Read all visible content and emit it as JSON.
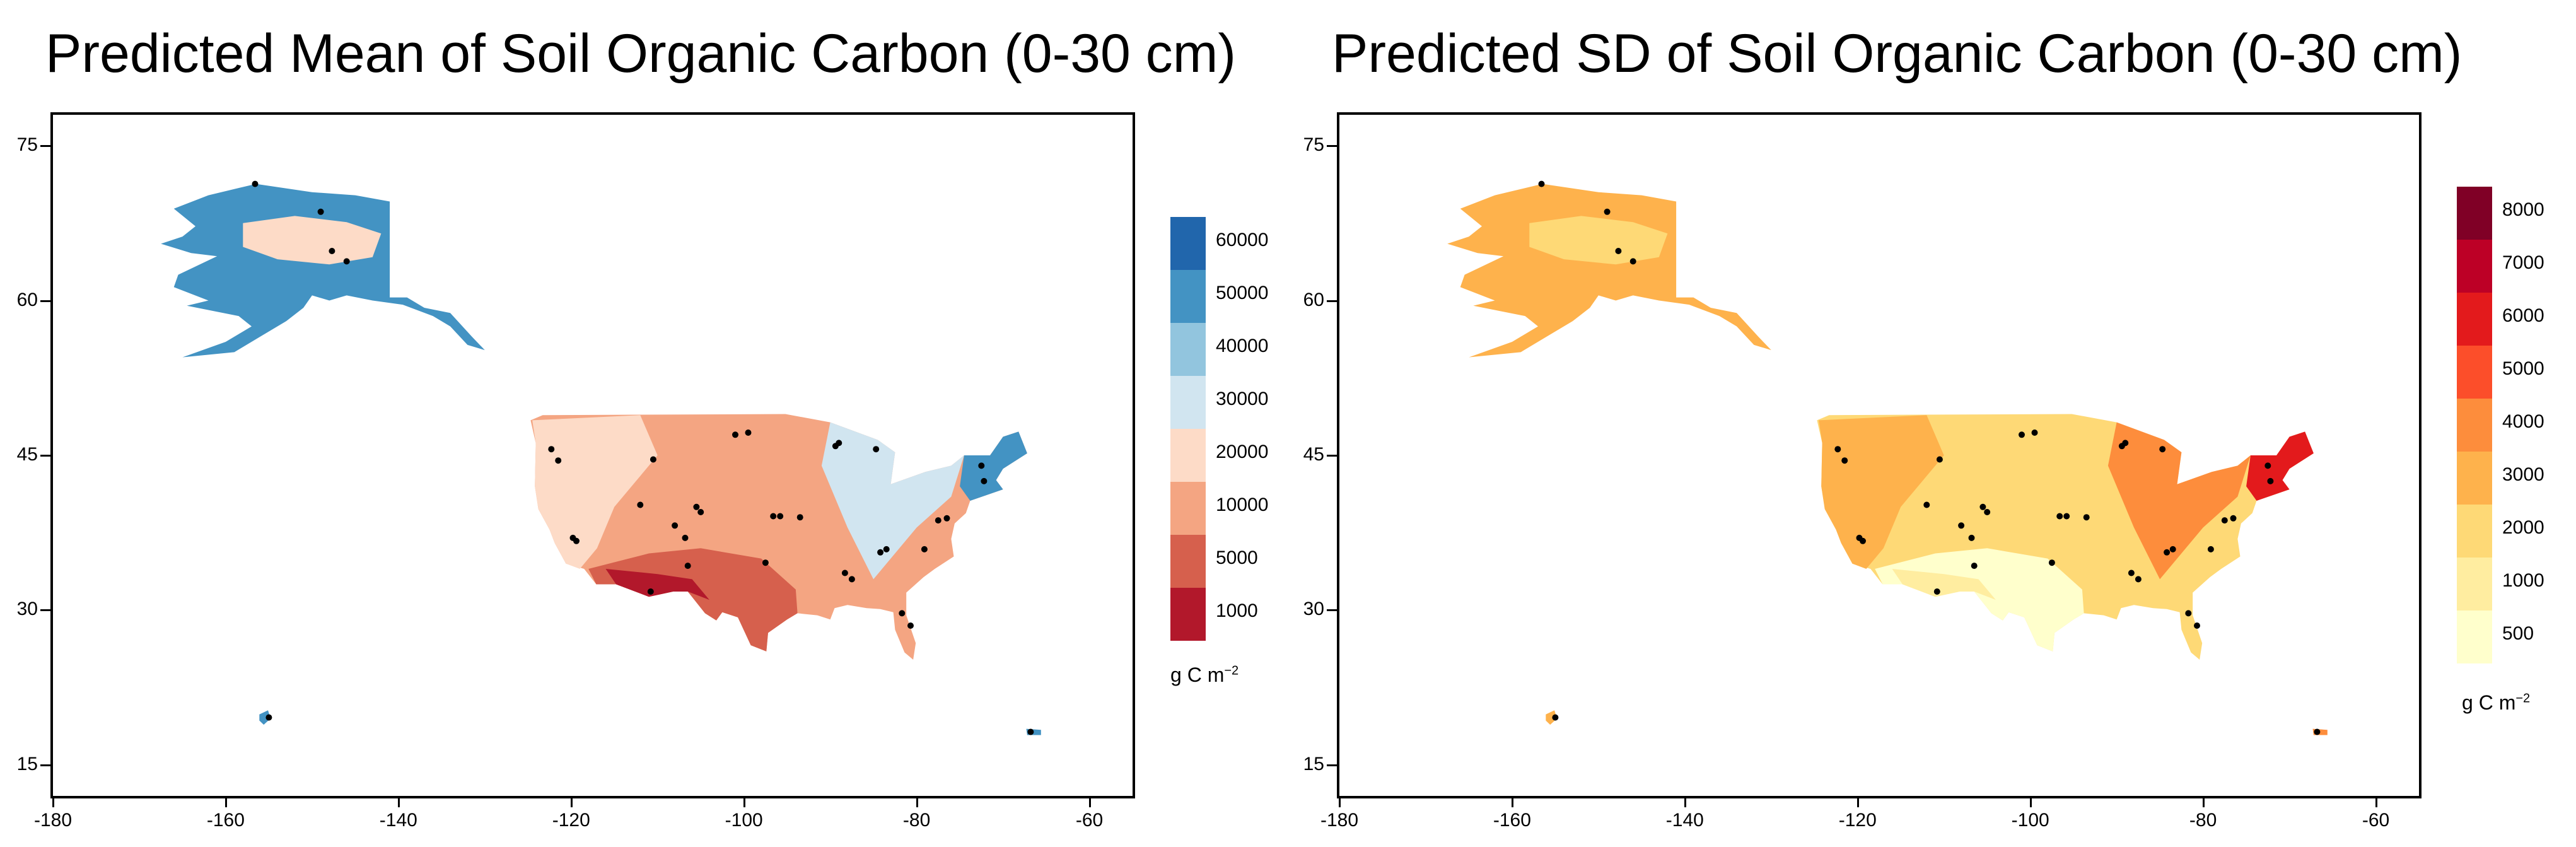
{
  "panels": [
    {
      "title": "Predicted Mean of Soil Organic Carbon (0-30 cm)",
      "legend": {
        "unit_main": "g C m",
        "unit_sup": "−2",
        "classes": [
          {
            "label": "60000",
            "color": "#2166ac"
          },
          {
            "label": "50000",
            "color": "#4393c3"
          },
          {
            "label": "40000",
            "color": "#92c5de"
          },
          {
            "label": "30000",
            "color": "#d1e5f0"
          },
          {
            "label": "20000",
            "color": "#fddbc7"
          },
          {
            "label": "10000",
            "color": "#f4a582"
          },
          {
            "label": "5000",
            "color": "#d6604d"
          },
          {
            "label": "1000",
            "color": "#b2182b"
          }
        ]
      },
      "map_fill": {
        "alaska": "#4393c3",
        "alaska_inner": "#fddbc7",
        "conus_base": "#f4a582",
        "conus_west": "#fddbc7",
        "conus_southwest": "#d6604d",
        "conus_core": "#b2182b",
        "conus_east": "#d1e5f0",
        "conus_northeast": "#4393c3",
        "hawaii": "#4393c3",
        "pr": "#4393c3"
      }
    },
    {
      "title": "Predicted SD of Soil Organic Carbon (0-30 cm)",
      "legend": {
        "unit_main": "g C m",
        "unit_sup": "−2",
        "classes": [
          {
            "label": "8000",
            "color": "#800026"
          },
          {
            "label": "7000",
            "color": "#bd0026"
          },
          {
            "label": "6000",
            "color": "#e31a1c"
          },
          {
            "label": "5000",
            "color": "#fc4e2a"
          },
          {
            "label": "4000",
            "color": "#fd8d3c"
          },
          {
            "label": "3000",
            "color": "#feb24c"
          },
          {
            "label": "2000",
            "color": "#fed976"
          },
          {
            "label": "1000",
            "color": "#ffeda0"
          },
          {
            "label": "500",
            "color": "#ffffcc"
          }
        ]
      },
      "map_fill": {
        "alaska": "#feb24c",
        "alaska_inner": "#fed976",
        "conus_base": "#fed976",
        "conus_west": "#feb24c",
        "conus_southwest": "#ffffcc",
        "conus_core": "#ffeda0",
        "conus_east": "#fd8d3c",
        "conus_northeast": "#e31a1c",
        "hawaii": "#feb24c",
        "pr": "#fd8d3c"
      }
    }
  ],
  "axes": {
    "x_ticks": [
      "-180",
      "-160",
      "-140",
      "-120",
      "-100",
      "-80",
      "-60"
    ],
    "y_ticks": [
      "75",
      "60",
      "45",
      "30",
      "15"
    ],
    "xlim": [
      -180,
      -55
    ],
    "ylim": [
      12,
      78
    ]
  },
  "sites": [
    {
      "lon": -156.6,
      "lat": 71.3
    },
    {
      "lon": -149.0,
      "lat": 68.6
    },
    {
      "lon": -147.7,
      "lat": 64.8
    },
    {
      "lon": -146.0,
      "lat": 63.8
    },
    {
      "lon": -155.0,
      "lat": 19.6
    },
    {
      "lon": -66.8,
      "lat": 18.2
    },
    {
      "lon": -122.3,
      "lat": 45.6
    },
    {
      "lon": -121.5,
      "lat": 44.5
    },
    {
      "lon": -110.5,
      "lat": 44.6
    },
    {
      "lon": -112.0,
      "lat": 40.2
    },
    {
      "lon": -105.5,
      "lat": 40.0
    },
    {
      "lon": -105.0,
      "lat": 39.5
    },
    {
      "lon": -108.0,
      "lat": 38.2
    },
    {
      "lon": -106.8,
      "lat": 37.0
    },
    {
      "lon": -106.5,
      "lat": 34.3
    },
    {
      "lon": -110.8,
      "lat": 31.8
    },
    {
      "lon": -119.8,
      "lat": 37.0
    },
    {
      "lon": -119.4,
      "lat": 36.7
    },
    {
      "lon": -101.0,
      "lat": 47.0
    },
    {
      "lon": -99.5,
      "lat": 47.2
    },
    {
      "lon": -96.6,
      "lat": 39.1
    },
    {
      "lon": -95.8,
      "lat": 39.1
    },
    {
      "lon": -93.5,
      "lat": 39.0
    },
    {
      "lon": -89.4,
      "lat": 45.9
    },
    {
      "lon": -89.0,
      "lat": 46.2
    },
    {
      "lon": -84.7,
      "lat": 45.6
    },
    {
      "lon": -83.5,
      "lat": 35.9
    },
    {
      "lon": -84.2,
      "lat": 35.6
    },
    {
      "lon": -79.1,
      "lat": 35.9
    },
    {
      "lon": -76.5,
      "lat": 38.9
    },
    {
      "lon": -77.5,
      "lat": 38.7
    },
    {
      "lon": -72.2,
      "lat": 42.5
    },
    {
      "lon": -72.5,
      "lat": 44.0
    },
    {
      "lon": -87.5,
      "lat": 33.0
    },
    {
      "lon": -88.3,
      "lat": 33.6
    },
    {
      "lon": -80.7,
      "lat": 28.5
    },
    {
      "lon": -81.7,
      "lat": 29.7
    },
    {
      "lon": -97.5,
      "lat": 34.6
    }
  ]
}
